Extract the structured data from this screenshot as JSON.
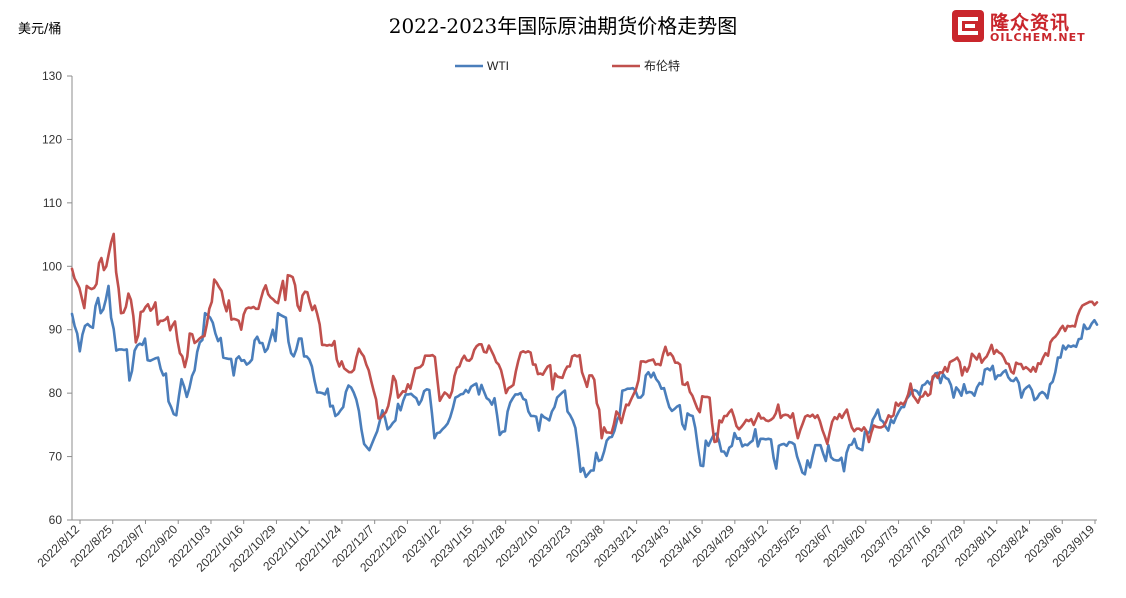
{
  "header": {
    "title": "2022-2023年国际原油期货价格走势图",
    "unit": "美元/桶",
    "brand": {
      "name": "隆众资讯",
      "domain": "OILCHEM.NET",
      "color": "#c9262c",
      "icon": "oilchem-logo-icon"
    }
  },
  "chart_data": {
    "type": "line",
    "ylim": [
      60,
      130
    ],
    "yticks": [
      60,
      70,
      80,
      90,
      100,
      110,
      120,
      130
    ],
    "grid": false,
    "legend_position": "top-center",
    "x_tick_labels": [
      "2022/8/12",
      "2022/8/25",
      "2022/9/7",
      "2022/9/20",
      "2022/10/3",
      "2022/10/16",
      "2022/10/29",
      "2022/11/11",
      "2022/11/24",
      "2022/12/7",
      "2022/12/20",
      "2023/1/2",
      "2023/1/15",
      "2023/1/28",
      "2023/2/10",
      "2023/2/23",
      "2023/3/8",
      "2023/3/21",
      "2023/4/3",
      "2023/4/16",
      "2023/4/29",
      "2023/5/12",
      "2023/5/25",
      "2023/6/7",
      "2023/6/20",
      "2023/7/3",
      "2023/7/16",
      "2023/7/29",
      "2023/8/11",
      "2023/8/24",
      "2023/9/6",
      "2023/9/19"
    ],
    "series": [
      {
        "name": "WTI",
        "color": "#4a7ebb",
        "values": [
          92.5,
          90.6,
          89.4,
          86.6,
          89.2,
          90.6,
          90.9,
          90.5,
          90.3,
          93.7,
          95.0,
          92.6,
          93.2,
          94.8,
          96.9,
          91.9,
          90.1,
          86.7,
          86.9,
          86.9,
          86.8,
          86.9,
          82.0,
          83.5,
          86.7,
          87.5,
          87.8,
          87.6,
          88.6,
          85.2,
          85.1,
          85.3,
          85.5,
          85.6,
          83.8,
          82.8,
          83.1,
          78.7,
          77.8,
          76.7,
          76.5,
          79.5,
          82.2,
          81.0,
          79.4,
          80.8,
          82.7,
          83.6,
          86.5,
          88.0,
          88.4,
          92.6,
          92.3,
          91.9,
          91.1,
          89.4,
          88.2,
          88.7,
          85.6,
          85.5,
          85.4,
          85.4,
          82.8,
          85.4,
          85.8,
          85.1,
          85.2,
          84.5,
          84.8,
          85.3,
          88.3,
          88.9,
          87.9,
          87.9,
          86.5,
          87.0,
          88.5,
          90.0,
          88.2,
          92.6,
          92.3,
          92.1,
          91.9,
          88.1,
          86.3,
          85.8,
          86.9,
          88.6,
          88.6,
          85.8,
          85.8,
          85.3,
          84.2,
          81.9,
          80.1,
          80.1,
          80.0,
          79.8,
          80.7,
          77.9,
          78.0,
          76.4,
          76.7,
          77.3,
          77.8,
          80.2,
          81.2,
          80.9,
          80.1,
          79.0,
          77.2,
          74.2,
          72.0,
          71.5,
          71.0,
          72.0,
          73.0,
          74.0,
          75.6,
          77.3,
          76.1,
          74.3,
          74.7,
          75.3,
          75.7,
          78.3,
          77.3,
          78.8,
          79.8,
          79.8,
          79.9,
          79.5,
          79.2,
          78.2,
          78.9,
          80.3,
          80.6,
          80.5,
          76.9,
          72.9,
          73.7,
          73.8,
          74.3,
          74.7,
          75.2,
          76.2,
          77.6,
          79.3,
          79.5,
          79.8,
          79.9,
          80.5,
          80.1,
          81.0,
          81.3,
          81.5,
          79.8,
          81.3,
          80.2,
          79.2,
          78.9,
          78.2,
          79.2,
          76.5,
          73.4,
          73.9,
          74.0,
          77.1,
          78.5,
          79.2,
          79.8,
          79.8,
          80.0,
          79.1,
          78.9,
          77.1,
          76.4,
          76.4,
          76.3,
          74.1,
          76.6,
          76.2,
          76.0,
          75.7,
          77.1,
          77.8,
          79.3,
          79.7,
          80.1,
          80.4,
          77.1,
          76.5,
          75.7,
          74.5,
          71.3,
          67.6,
          68.2,
          66.8,
          67.3,
          67.8,
          67.8,
          70.6,
          69.3,
          69.5,
          70.8,
          72.5,
          73.0,
          73.1,
          74.1,
          75.8,
          76.5,
          80.4,
          80.5,
          80.7,
          80.7,
          80.8,
          80.4,
          79.3,
          79.3,
          79.8,
          82.8,
          83.3,
          82.5,
          83.2,
          82.2,
          81.7,
          80.7,
          80.8,
          79.2,
          77.8,
          77.2,
          77.5,
          77.9,
          78.1,
          75.1,
          74.3,
          76.8,
          76.5,
          76.4,
          74.5,
          71.3,
          68.6,
          68.5,
          72.5,
          71.7,
          72.6,
          73.4,
          73.6,
          72.6,
          70.8,
          70.8,
          70.1,
          71.4,
          71.7,
          73.7,
          72.8,
          72.9,
          71.6,
          71.9,
          71.8,
          72.2,
          72.5,
          74.3,
          71.6,
          72.8,
          72.8,
          72.7,
          72.8,
          72.7,
          69.8,
          68.1,
          71.7,
          71.9,
          72.0,
          71.7,
          72.3,
          72.2,
          71.9,
          70.0,
          68.8,
          67.5,
          67.2,
          69.4,
          68.3,
          70.1,
          71.8,
          71.8,
          71.8,
          70.5,
          69.3,
          71.8,
          69.9,
          69.5,
          69.4,
          69.4,
          69.8,
          67.7,
          70.6,
          71.8,
          71.9,
          72.8,
          71.4,
          71.2,
          71.0,
          73.9,
          73.6,
          74.0,
          75.8,
          76.5,
          77.4,
          75.8,
          75.5,
          74.7,
          74.1,
          75.8,
          75.3,
          76.3,
          77.1,
          77.8,
          77.8,
          79.1,
          79.6,
          80.3,
          80.5,
          80.3,
          79.7,
          81.2,
          81.4,
          81.9,
          81.4,
          82.2,
          83.1,
          83.2,
          81.6,
          83.0,
          82.4,
          82.2,
          81.3,
          79.3,
          80.9,
          80.4,
          79.6,
          81.4,
          80.0,
          80.2,
          80.1,
          79.6,
          80.9,
          81.6,
          81.4,
          83.7,
          83.9,
          83.6,
          84.3,
          82.2,
          82.8,
          82.8,
          83.3,
          83.6,
          82.5,
          82.0,
          81.9,
          82.4,
          81.6,
          79.3,
          80.5,
          80.9,
          81.2,
          80.5,
          78.9,
          79.2,
          79.9,
          80.2,
          79.9,
          79.2,
          81.4,
          81.8,
          83.3,
          85.6,
          85.6,
          87.5,
          86.9,
          87.5,
          87.3,
          87.5,
          87.3,
          88.5,
          88.6,
          90.8,
          90.1,
          90.2,
          91.0,
          91.5,
          90.8
        ]
      },
      {
        "name": "布伦特",
        "color": "#c0504d",
        "values": [
          99.6,
          98.1,
          97.4,
          96.6,
          95.0,
          93.4,
          96.9,
          96.6,
          96.4,
          96.6,
          97.2,
          100.5,
          101.3,
          99.4,
          100.0,
          102.0,
          103.8,
          105.1,
          99.1,
          96.5,
          92.6,
          92.7,
          93.6,
          95.7,
          94.7,
          92.2,
          88.0,
          89.1,
          92.8,
          92.9,
          93.6,
          94.0,
          93.0,
          93.4,
          94.3,
          90.8,
          91.4,
          91.4,
          91.6,
          92.0,
          89.9,
          90.7,
          91.3,
          88.4,
          86.3,
          85.8,
          84.1,
          85.8,
          89.4,
          89.3,
          87.9,
          88.2,
          88.6,
          88.9,
          89.0,
          90.9,
          93.3,
          94.4,
          97.9,
          97.4,
          96.7,
          96.1,
          94.2,
          92.9,
          94.6,
          91.6,
          91.7,
          91.6,
          91.4,
          90.0,
          92.4,
          93.3,
          93.5,
          93.4,
          93.6,
          93.3,
          93.3,
          94.8,
          96.2,
          97.0,
          95.6,
          95.1,
          94.8,
          94.4,
          94.2,
          96.0,
          97.7,
          94.7,
          98.6,
          98.5,
          98.3,
          97.0,
          93.8,
          93.0,
          95.4,
          96.0,
          95.9,
          94.3,
          93.1,
          93.8,
          92.5,
          90.8,
          87.6,
          87.6,
          87.5,
          87.6,
          87.5,
          88.2,
          85.3,
          84.2,
          85.0,
          83.9,
          83.6,
          83.3,
          83.3,
          83.7,
          85.6,
          87.0,
          86.3,
          85.8,
          84.5,
          83.6,
          81.9,
          80.4,
          79.0,
          76.0,
          76.1,
          76.6,
          77.0,
          78.0,
          80.0,
          82.7,
          81.9,
          79.3,
          79.8,
          80.3,
          80.2,
          81.4,
          80.7,
          82.3,
          83.9,
          84.0,
          84.1,
          84.5,
          85.9,
          85.9,
          85.9,
          86.0,
          85.7,
          82.1,
          78.8,
          79.5,
          80.1,
          79.8,
          79.3,
          80.3,
          82.7,
          84.0,
          84.2,
          85.3,
          85.9,
          85.2,
          85.1,
          85.5,
          86.8,
          87.4,
          87.7,
          87.7,
          86.5,
          86.4,
          87.5,
          86.7,
          85.9,
          84.9,
          84.5,
          83.6,
          81.9,
          80.0,
          80.8,
          81.0,
          81.3,
          83.4,
          85.1,
          86.4,
          86.6,
          86.4,
          86.6,
          86.4,
          84.5,
          84.5,
          83.0,
          83.1,
          82.9,
          83.6,
          84.2,
          84.4,
          80.6,
          83.1,
          82.6,
          82.5,
          82.4,
          83.5,
          84.2,
          84.2,
          85.8,
          86.0,
          85.8,
          86.0,
          83.3,
          82.2,
          81.0,
          82.8,
          82.8,
          82.1,
          78.4,
          77.4,
          72.9,
          74.6,
          73.8,
          73.8,
          73.7,
          75.1,
          77.1,
          76.6,
          75.3,
          76.8,
          78.2,
          78.1,
          79.0,
          79.8,
          80.6,
          82.0,
          85.0,
          85.0,
          84.9,
          85.1,
          85.2,
          85.3,
          84.5,
          84.6,
          84.4,
          86.1,
          87.3,
          86.0,
          86.3,
          85.8,
          84.8,
          84.8,
          84.5,
          81.4,
          81.3,
          81.7,
          80.2,
          79.6,
          78.6,
          77.6,
          77.0,
          79.5,
          79.4,
          79.4,
          79.3,
          75.3,
          72.3,
          72.4,
          75.7,
          75.4,
          76.4,
          76.4,
          77.0,
          77.4,
          76.2,
          74.8,
          74.3,
          74.7,
          75.2,
          75.8,
          75.6,
          75.9,
          75.0,
          75.9,
          76.8,
          76.0,
          76.1,
          75.7,
          75.6,
          75.8,
          76.1,
          76.8,
          78.2,
          76.1,
          76.5,
          76.6,
          76.5,
          76.1,
          76.8,
          74.7,
          72.9,
          74.2,
          75.2,
          76.3,
          76.5,
          76.3,
          76.6,
          76.1,
          76.5,
          75.6,
          74.2,
          73.2,
          72.0,
          73.8,
          75.5,
          76.2,
          75.9,
          76.7,
          76.1,
          76.8,
          77.4,
          75.9,
          74.6,
          74.0,
          74.4,
          74.4,
          74.1,
          74.6,
          74.0,
          72.3,
          73.8,
          74.9,
          74.7,
          74.6,
          74.6,
          74.8,
          75.5,
          76.5,
          76.2,
          76.5,
          78.5,
          78.0,
          78.5,
          78.2,
          78.8,
          79.8,
          81.5,
          79.6,
          79.1,
          78.5,
          79.4,
          79.5,
          80.2,
          79.6,
          79.9,
          82.6,
          82.9,
          82.4,
          83.3,
          83.2,
          84.1,
          83.4,
          84.9,
          85.1,
          85.3,
          85.6,
          84.9,
          82.8,
          84.1,
          83.4,
          84.3,
          86.2,
          85.8,
          85.3,
          86.2,
          84.8,
          85.4,
          85.8,
          86.6,
          87.6,
          86.2,
          86.8,
          86.4,
          86.2,
          85.6,
          84.7,
          84.6,
          83.4,
          83.1,
          84.8,
          84.6,
          84.6,
          83.8,
          84.1,
          83.8,
          83.4,
          84.1,
          83.4,
          84.7,
          84.6,
          85.6,
          86.3,
          85.9,
          88.0,
          88.6,
          88.9,
          89.4,
          90.1,
          90.6,
          89.8,
          90.6,
          90.5,
          90.6,
          90.5,
          92.1,
          93.1,
          93.8,
          94.0,
          94.2,
          94.4,
          94.4,
          93.9,
          94.3
        ]
      }
    ]
  }
}
